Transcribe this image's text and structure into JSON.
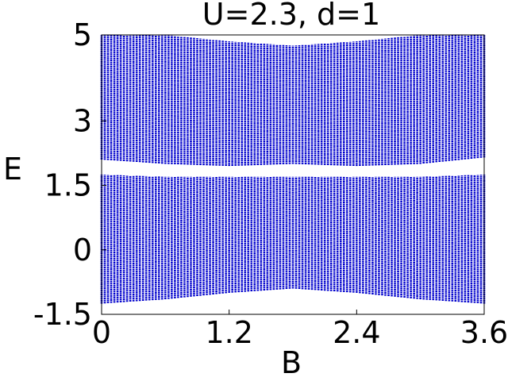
{
  "chart_data": {
    "type": "scatter",
    "title": "U=2.3, d=1",
    "xlabel": "B",
    "ylabel": "E",
    "xlim": [
      0,
      3.6
    ],
    "ylim": [
      -1.5,
      5
    ],
    "xticks": [
      {
        "value": 0,
        "label": "0"
      },
      {
        "value": 1.2,
        "label": "1.2"
      },
      {
        "value": 2.4,
        "label": "2.4"
      },
      {
        "value": 3.6,
        "label": "3.6"
      }
    ],
    "yticks": [
      {
        "value": -1.5,
        "label": "-1.5"
      },
      {
        "value": 0,
        "label": "0"
      },
      {
        "value": 1.5,
        "label": "1.5"
      },
      {
        "value": 3,
        "label": "3"
      },
      {
        "value": 5,
        "label": "5"
      }
    ],
    "series_color": "#0000cc",
    "grid": false,
    "bands": [
      {
        "name": "upper band",
        "B": [
          0,
          0.6,
          1.2,
          1.8,
          2.4,
          3.0,
          3.6
        ],
        "E_min": [
          2.1,
          2.0,
          1.95,
          2.0,
          1.95,
          2.0,
          2.15
        ],
        "E_max": [
          5.0,
          5.0,
          4.85,
          4.75,
          4.85,
          5.0,
          5.0
        ]
      },
      {
        "name": "lower band",
        "B": [
          0,
          0.6,
          1.2,
          1.8,
          2.4,
          3.0,
          3.6
        ],
        "E_min": [
          -1.25,
          -1.15,
          -1.0,
          -0.9,
          -1.0,
          -1.15,
          -1.25
        ],
        "E_max": [
          1.75,
          1.7,
          1.7,
          1.7,
          1.7,
          1.7,
          1.75
        ]
      }
    ]
  }
}
